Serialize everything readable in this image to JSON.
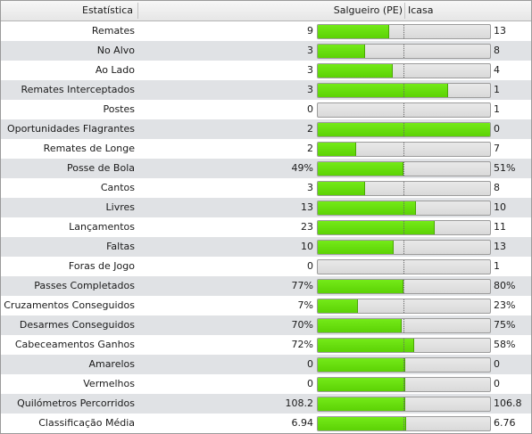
{
  "header": {
    "stat": "Estatística",
    "home": "Salgueiro (PE)",
    "away": "Icasa"
  },
  "colors": {
    "bar_fill": "#5cd205",
    "bar_track": "#dddddd",
    "row_alt": "#e0e2e5"
  },
  "rows": [
    {
      "label": "Remates",
      "home": "9",
      "away": "13",
      "share": 0.41
    },
    {
      "label": "No Alvo",
      "home": "3",
      "away": "8",
      "share": 0.27
    },
    {
      "label": "Ao Lado",
      "home": "3",
      "away": "4",
      "share": 0.43
    },
    {
      "label": "Remates Interceptados",
      "home": "3",
      "away": "1",
      "share": 0.75
    },
    {
      "label": "Postes",
      "home": "0",
      "away": "1",
      "share": 0.0
    },
    {
      "label": "Oportunidades Flagrantes",
      "home": "2",
      "away": "0",
      "share": 1.0
    },
    {
      "label": "Remates de Longe",
      "home": "2",
      "away": "7",
      "share": 0.22
    },
    {
      "label": "Posse de Bola",
      "home": "49%",
      "away": "51%",
      "share": 0.49
    },
    {
      "label": "Cantos",
      "home": "3",
      "away": "8",
      "share": 0.27
    },
    {
      "label": "Livres",
      "home": "13",
      "away": "10",
      "share": 0.565
    },
    {
      "label": "Lançamentos",
      "home": "23",
      "away": "11",
      "share": 0.676
    },
    {
      "label": "Faltas",
      "home": "10",
      "away": "13",
      "share": 0.435
    },
    {
      "label": "Foras de Jogo",
      "home": "0",
      "away": "1",
      "share": 0.0
    },
    {
      "label": "Passes Completados",
      "home": "77%",
      "away": "80%",
      "share": 0.49
    },
    {
      "label": "Cruzamentos Conseguidos",
      "home": "7%",
      "away": "23%",
      "share": 0.23
    },
    {
      "label": "Desarmes Conseguidos",
      "home": "70%",
      "away": "75%",
      "share": 0.483
    },
    {
      "label": "Cabeceamentos Ganhos",
      "home": "72%",
      "away": "58%",
      "share": 0.554
    },
    {
      "label": "Amarelos",
      "home": "0",
      "away": "0",
      "share": 0.5
    },
    {
      "label": "Vermelhos",
      "home": "0",
      "away": "0",
      "share": 0.5
    },
    {
      "label": "Quilómetros Percorridos",
      "home": "108.2",
      "away": "106.8",
      "share": 0.503
    },
    {
      "label": "Classificação Média",
      "home": "6.94",
      "away": "6.76",
      "share": 0.507
    }
  ]
}
